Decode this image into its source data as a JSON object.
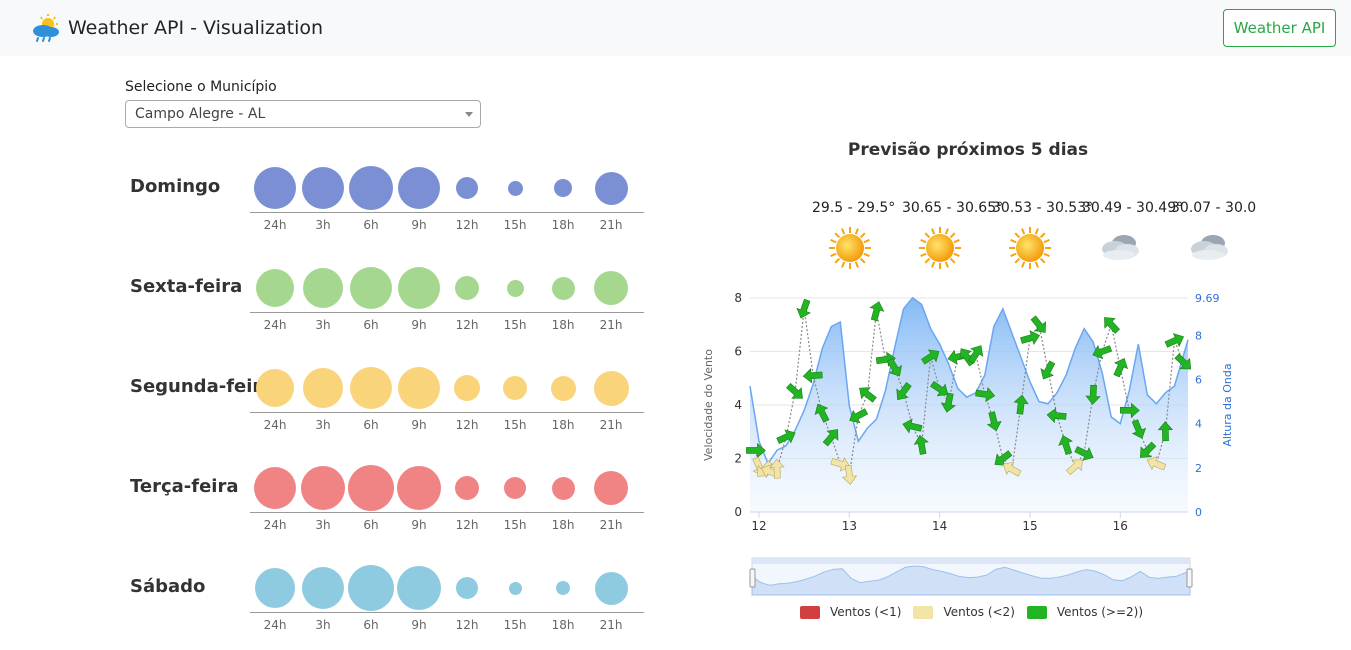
{
  "app": {
    "title": "Weather API - Visualization",
    "nav_button": "Weather API"
  },
  "selector": {
    "label": "Selecione o Município",
    "value": "Campo Alegre - AL"
  },
  "hours": [
    "24h",
    "3h",
    "6h",
    "9h",
    "12h",
    "15h",
    "18h",
    "21h"
  ],
  "days": [
    {
      "name": "Domingo",
      "color": "#7b8fd4",
      "sizes": [
        42,
        42,
        44,
        42,
        22,
        15,
        18,
        33
      ]
    },
    {
      "name": "Sexta-feira",
      "color": "#a5d78f",
      "sizes": [
        38,
        40,
        42,
        42,
        24,
        17,
        23,
        34
      ]
    },
    {
      "name": "Segunda-feira",
      "color": "#f9d47a",
      "sizes": [
        38,
        40,
        42,
        42,
        26,
        24,
        25,
        35
      ]
    },
    {
      "name": "Terça-feira",
      "color": "#f08484",
      "sizes": [
        42,
        44,
        46,
        44,
        24,
        22,
        23,
        34
      ]
    },
    {
      "name": "Sábado",
      "color": "#8fcbe0",
      "sizes": [
        40,
        42,
        46,
        44,
        22,
        13,
        14,
        33
      ]
    }
  ],
  "forecast": {
    "title": "Previsão próximos 5 dias",
    "temps": [
      "29.5 - 29.5°",
      "30.65 - 30.65°",
      "30.53 - 30.53°",
      "30.49 - 30.49°",
      "30.07 - 30.0"
    ],
    "icons": [
      "sun-icon",
      "sun-icon",
      "sun-icon",
      "cloud-rain-icon",
      "cloud-rain-icon"
    ]
  },
  "chart_data": {
    "type": "area",
    "title": "Previsão próximos 5 dias",
    "xlabel": "",
    "ylabel": "Velocidade do Vento",
    "y2label": "Altura da Onda",
    "x_ticks": [
      "12",
      "13",
      "14",
      "15",
      "16"
    ],
    "y_ticks": [
      "0",
      "2",
      "4",
      "6",
      "8"
    ],
    "y2_ticks": [
      "0",
      "2",
      "4",
      "6",
      "8",
      "9.69"
    ],
    "xlim": [
      11.9,
      16.75
    ],
    "ylim": [
      0,
      8
    ],
    "y2lim": [
      0,
      9.69
    ],
    "series": [
      {
        "name": "Altura da Onda",
        "axis": "right",
        "color": "#6aa7f0",
        "x": [
          11.9,
          12.0,
          12.1,
          12.2,
          12.3,
          12.4,
          12.5,
          12.6,
          12.7,
          12.8,
          12.9,
          13.0,
          13.1,
          13.2,
          13.3,
          13.4,
          13.5,
          13.6,
          13.7,
          13.8,
          13.9,
          14.0,
          14.1,
          14.2,
          14.3,
          14.4,
          14.5,
          14.6,
          14.7,
          14.8,
          14.9,
          15.0,
          15.1,
          15.2,
          15.3,
          15.4,
          15.5,
          15.6,
          15.7,
          15.8,
          15.9,
          16.0,
          16.1,
          16.2,
          16.3,
          16.4,
          16.5,
          16.6,
          16.75
        ],
        "y": [
          5.7,
          3.2,
          2.2,
          2.8,
          3.0,
          3.7,
          4.6,
          5.8,
          7.4,
          8.4,
          8.6,
          4.8,
          3.2,
          3.8,
          4.2,
          5.5,
          7.4,
          9.2,
          9.7,
          9.4,
          8.3,
          7.6,
          6.7,
          5.6,
          5.2,
          5.4,
          6.2,
          8.4,
          9.2,
          8.1,
          7.0,
          5.9,
          5.0,
          4.9,
          5.4,
          6.2,
          7.4,
          8.3,
          7.7,
          6.3,
          4.3,
          4.0,
          5.5,
          7.6,
          5.3,
          4.9,
          5.4,
          5.7,
          7.8
        ]
      }
    ],
    "wind_speed": {
      "x": [
        11.96,
        12.0,
        12.06,
        12.13,
        12.2,
        12.3,
        12.4,
        12.5,
        12.6,
        12.7,
        12.8,
        12.9,
        13.0,
        13.1,
        13.2,
        13.3,
        13.4,
        13.5,
        13.6,
        13.7,
        13.8,
        13.9,
        14.0,
        14.1,
        14.2,
        14.3,
        14.4,
        14.5,
        14.6,
        14.7,
        14.8,
        14.9,
        15.0,
        15.1,
        15.2,
        15.3,
        15.4,
        15.5,
        15.6,
        15.7,
        15.8,
        15.9,
        16.0,
        16.1,
        16.2,
        16.3,
        16.4,
        16.5,
        16.6,
        16.7
      ],
      "y": [
        2.3,
        1.7,
        1.6,
        1.5,
        1.6,
        2.8,
        4.5,
        7.6,
        5.1,
        3.7,
        2.8,
        1.8,
        1.4,
        3.6,
        4.4,
        7.5,
        5.7,
        5.4,
        4.5,
        3.2,
        2.5,
        5.8,
        4.6,
        4.1,
        5.8,
        5.8,
        5.9,
        4.4,
        3.4,
        2.0,
        1.6,
        4.0,
        6.5,
        7.0,
        5.3,
        3.6,
        2.5,
        1.7,
        2.2,
        4.4,
        6.0,
        7.0,
        5.4,
        3.8,
        3.1,
        2.3,
        1.8,
        3.0,
        6.4,
        5.6
      ]
    },
    "legend": [
      "Ventos (<1)",
      "Ventos (<2)",
      "Ventos (>=2))"
    ],
    "legend_colors": [
      "#d04040",
      "#f1e4a6",
      "#22b422"
    ],
    "grid": true,
    "legend_position": "bottom"
  }
}
